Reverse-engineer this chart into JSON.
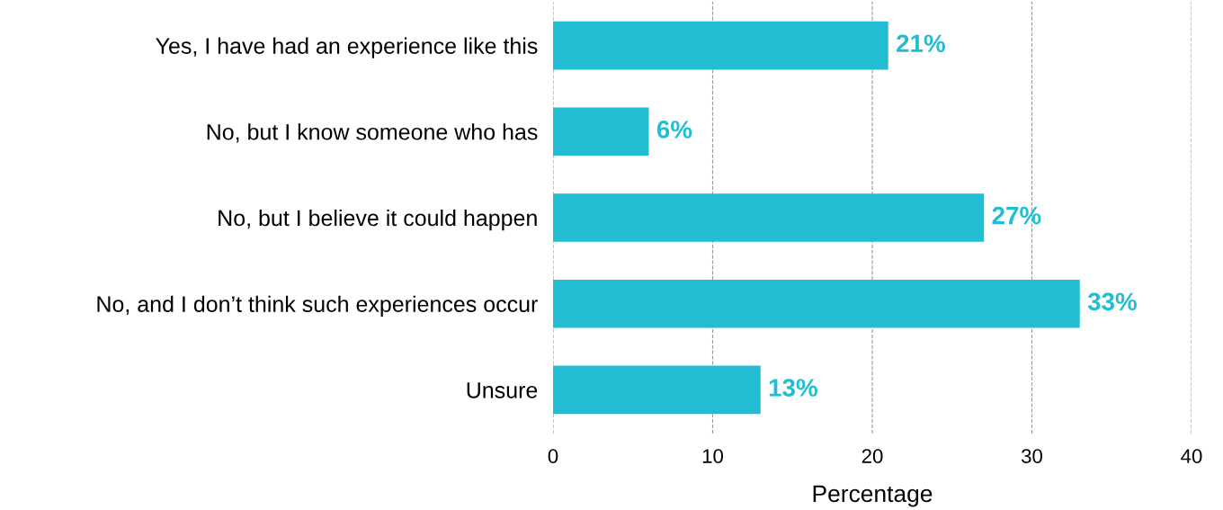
{
  "chart_data": {
    "type": "bar",
    "orientation": "horizontal",
    "xlabel": "Percentage",
    "categories": [
      "Yes, I have had an experience like this",
      "No, but I know someone who has",
      "No, but I believe it could happen",
      "No, and I don’t think such experiences occur",
      "Unsure"
    ],
    "values": [
      21,
      6,
      27,
      33,
      13
    ],
    "value_labels": [
      "21%",
      "6%",
      "27%",
      "33%",
      "13%"
    ],
    "color": "#22bdd2",
    "xlim": [
      0,
      40
    ],
    "xticks": [
      0,
      10,
      20,
      30,
      40
    ],
    "grid": "x"
  }
}
